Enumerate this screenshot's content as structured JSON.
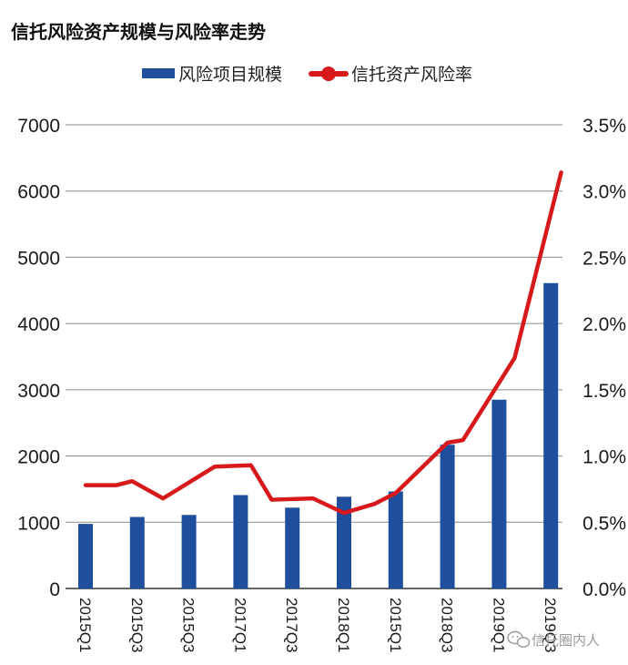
{
  "chart_data": {
    "type": "bar+line",
    "title": "信托风险资产规模与风险率走势",
    "categories": [
      "2015Q1",
      "2015Q3",
      "2015Q3",
      "2017Q1",
      "2017Q3",
      "2018Q1",
      "2015Q1",
      "2018Q3",
      "2019Q1",
      "2019Q3"
    ],
    "series": [
      {
        "name": "风险项目规模",
        "type": "bar",
        "axis": "left",
        "color": "#1f4e9c",
        "values": [
          975,
          1080,
          1110,
          1410,
          1220,
          1385,
          1465,
          2170,
          2850,
          4610
        ]
      },
      {
        "name": "信托资产风险率",
        "type": "line",
        "axis": "right",
        "color": "#d7191c",
        "points": [
          {
            "x": 0.0,
            "y": 0.78
          },
          {
            "x": 0.6,
            "y": 0.78
          },
          {
            "x": 0.9,
            "y": 0.81
          },
          {
            "x": 1.5,
            "y": 0.68
          },
          {
            "x": 2.5,
            "y": 0.92
          },
          {
            "x": 3.2,
            "y": 0.93
          },
          {
            "x": 3.6,
            "y": 0.67
          },
          {
            "x": 4.4,
            "y": 0.68
          },
          {
            "x": 5.0,
            "y": 0.57
          },
          {
            "x": 5.6,
            "y": 0.64
          },
          {
            "x": 6.0,
            "y": 0.72
          },
          {
            "x": 7.0,
            "y": 1.1
          },
          {
            "x": 7.3,
            "y": 1.12
          },
          {
            "x": 8.3,
            "y": 1.74
          },
          {
            "x": 9.2,
            "y": 3.14
          }
        ]
      }
    ],
    "y_left": {
      "min": 0,
      "max": 7000,
      "ticks": [
        "0",
        "1000",
        "2000",
        "3000",
        "4000",
        "5000",
        "6000",
        "7000"
      ]
    },
    "y_right": {
      "ticks": [
        {
          "label": "0.0%",
          "value": 0.0
        },
        {
          "label": "0.5%",
          "value": 0.5
        },
        {
          "label": "1.0%",
          "value": 1.0
        },
        {
          "label": "1.5%",
          "value": 1.5
        },
        {
          "label": "2.0%",
          "value": 2.0
        },
        {
          "label": "2.5%",
          "value": 2.5
        },
        {
          "label": "3.0%",
          "value": 3.0
        },
        {
          "label": "3.5%",
          "value": 3.5
        }
      ]
    },
    "legend_position": "top-center",
    "grid": true
  },
  "watermark": "信托圈内人",
  "icons": {
    "watermark_icon": "wechat-icon"
  }
}
